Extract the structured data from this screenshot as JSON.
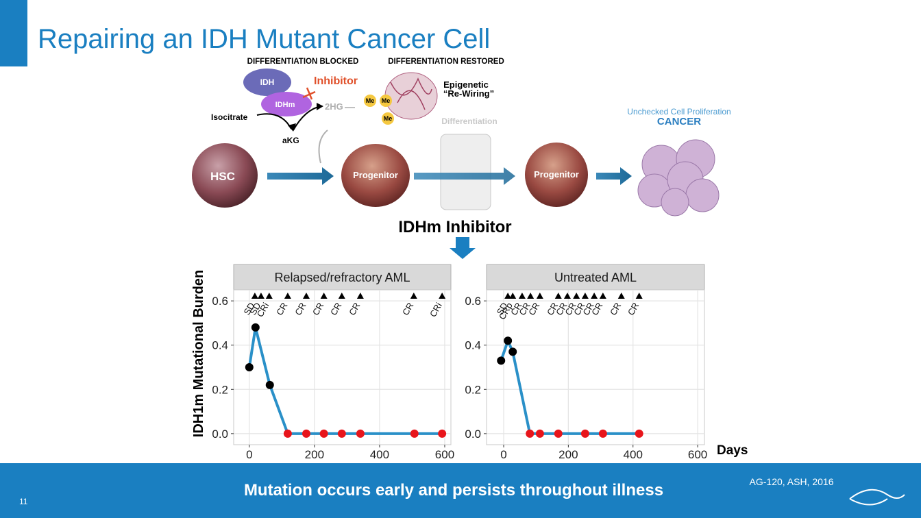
{
  "slide": {
    "title": "Repairing an IDH Mutant Cancer Cell",
    "footer": "Mutation occurs early and persists throughout illness",
    "source": "AG-120, ASH, 2016",
    "page_number": "11"
  },
  "diagram": {
    "blocked": "DIFFERENTIATION BLOCKED",
    "restored": "DIFFERENTIATION RESTORED",
    "idh": "IDH",
    "idhm": "IDHm",
    "inhibitor": "Inhibitor",
    "isocitrate": "Isocitrate",
    "akg": "aKG",
    "hg": "2HG",
    "me": [
      "Me",
      "Me",
      "Me"
    ],
    "epigenetic": [
      "Epigenetic",
      "“Re-Wiring”"
    ],
    "differentiation": "Differentiation",
    "unchecked": "Unchecked Cell Proliferation",
    "cancer": "CANCER",
    "hsc": "HSC",
    "progenitor": [
      "Progenitor",
      "Progenitor"
    ],
    "idhm_inhibitor": "IDHm Inhibitor"
  },
  "chart_data": [
    {
      "type": "line",
      "panel_title": "Relapsed/refractory AML",
      "ylabel": "IDH1m Mutational Burden",
      "x": [
        0,
        19,
        63,
        118,
        175,
        229,
        284,
        341,
        507,
        592
      ],
      "values": [
        0.3,
        0.48,
        0.22,
        0,
        0,
        0,
        0,
        0,
        0,
        0
      ],
      "color": "#2a90c8",
      "point_colors": [
        "#000000",
        "#000000",
        "#000000",
        "#e8151b",
        "#e8151b",
        "#e8151b",
        "#e8151b",
        "#e8151b",
        "#e8151b",
        "#e8151b"
      ],
      "annotations": [
        {
          "x": 17,
          "label": "SD"
        },
        {
          "x": 36,
          "label": "SD"
        },
        {
          "x": 61,
          "label": "CRi"
        },
        {
          "x": 118,
          "label": "CR"
        },
        {
          "x": 175,
          "label": "CR"
        },
        {
          "x": 229,
          "label": "CR"
        },
        {
          "x": 284,
          "label": "CR"
        },
        {
          "x": 341,
          "label": "CR"
        },
        {
          "x": 505,
          "label": "CR"
        },
        {
          "x": 592,
          "label": "CRi"
        }
      ],
      "xlim": [
        -48,
        619
      ],
      "ylim": [
        -0.05,
        0.65
      ],
      "xticks": [
        0,
        200,
        400,
        600
      ],
      "yticks": [
        {
          "value": 0,
          "label": "0.0"
        },
        0.2,
        0.4,
        0.6
      ],
      "grid": true
    },
    {
      "type": "line",
      "panel_title": "Untreated AML",
      "xlabel": "Days",
      "x": [
        -8,
        13,
        28,
        81,
        112,
        169,
        252,
        307,
        419
      ],
      "values": [
        0.33,
        0.42,
        0.37,
        0,
        0,
        0,
        0,
        0,
        0
      ],
      "color": "#2a90c8",
      "point_colors": [
        "#000000",
        "#000000",
        "#000000",
        "#e8151b",
        "#e8151b",
        "#e8151b",
        "#e8151b",
        "#e8151b",
        "#e8151b"
      ],
      "annotations": [
        {
          "x": 13,
          "label": "SD"
        },
        {
          "x": 28,
          "label": "CRp"
        },
        {
          "x": 57,
          "label": "CR"
        },
        {
          "x": 83,
          "label": "CR"
        },
        {
          "x": 112,
          "label": "CR"
        },
        {
          "x": 169,
          "label": "CR"
        },
        {
          "x": 197,
          "label": "CR"
        },
        {
          "x": 225,
          "label": "CR"
        },
        {
          "x": 252,
          "label": "CR"
        },
        {
          "x": 280,
          "label": "CR"
        },
        {
          "x": 307,
          "label": "CR"
        },
        {
          "x": 364,
          "label": "CR"
        },
        {
          "x": 419,
          "label": "CR"
        }
      ],
      "xlim": [
        -53,
        621
      ],
      "ylim": [
        -0.05,
        0.65
      ],
      "xticks": [
        0,
        200,
        400,
        600
      ],
      "yticks": [
        {
          "value": 0,
          "label": "0.0"
        },
        0.2,
        0.4,
        0.6
      ],
      "grid": true
    }
  ]
}
